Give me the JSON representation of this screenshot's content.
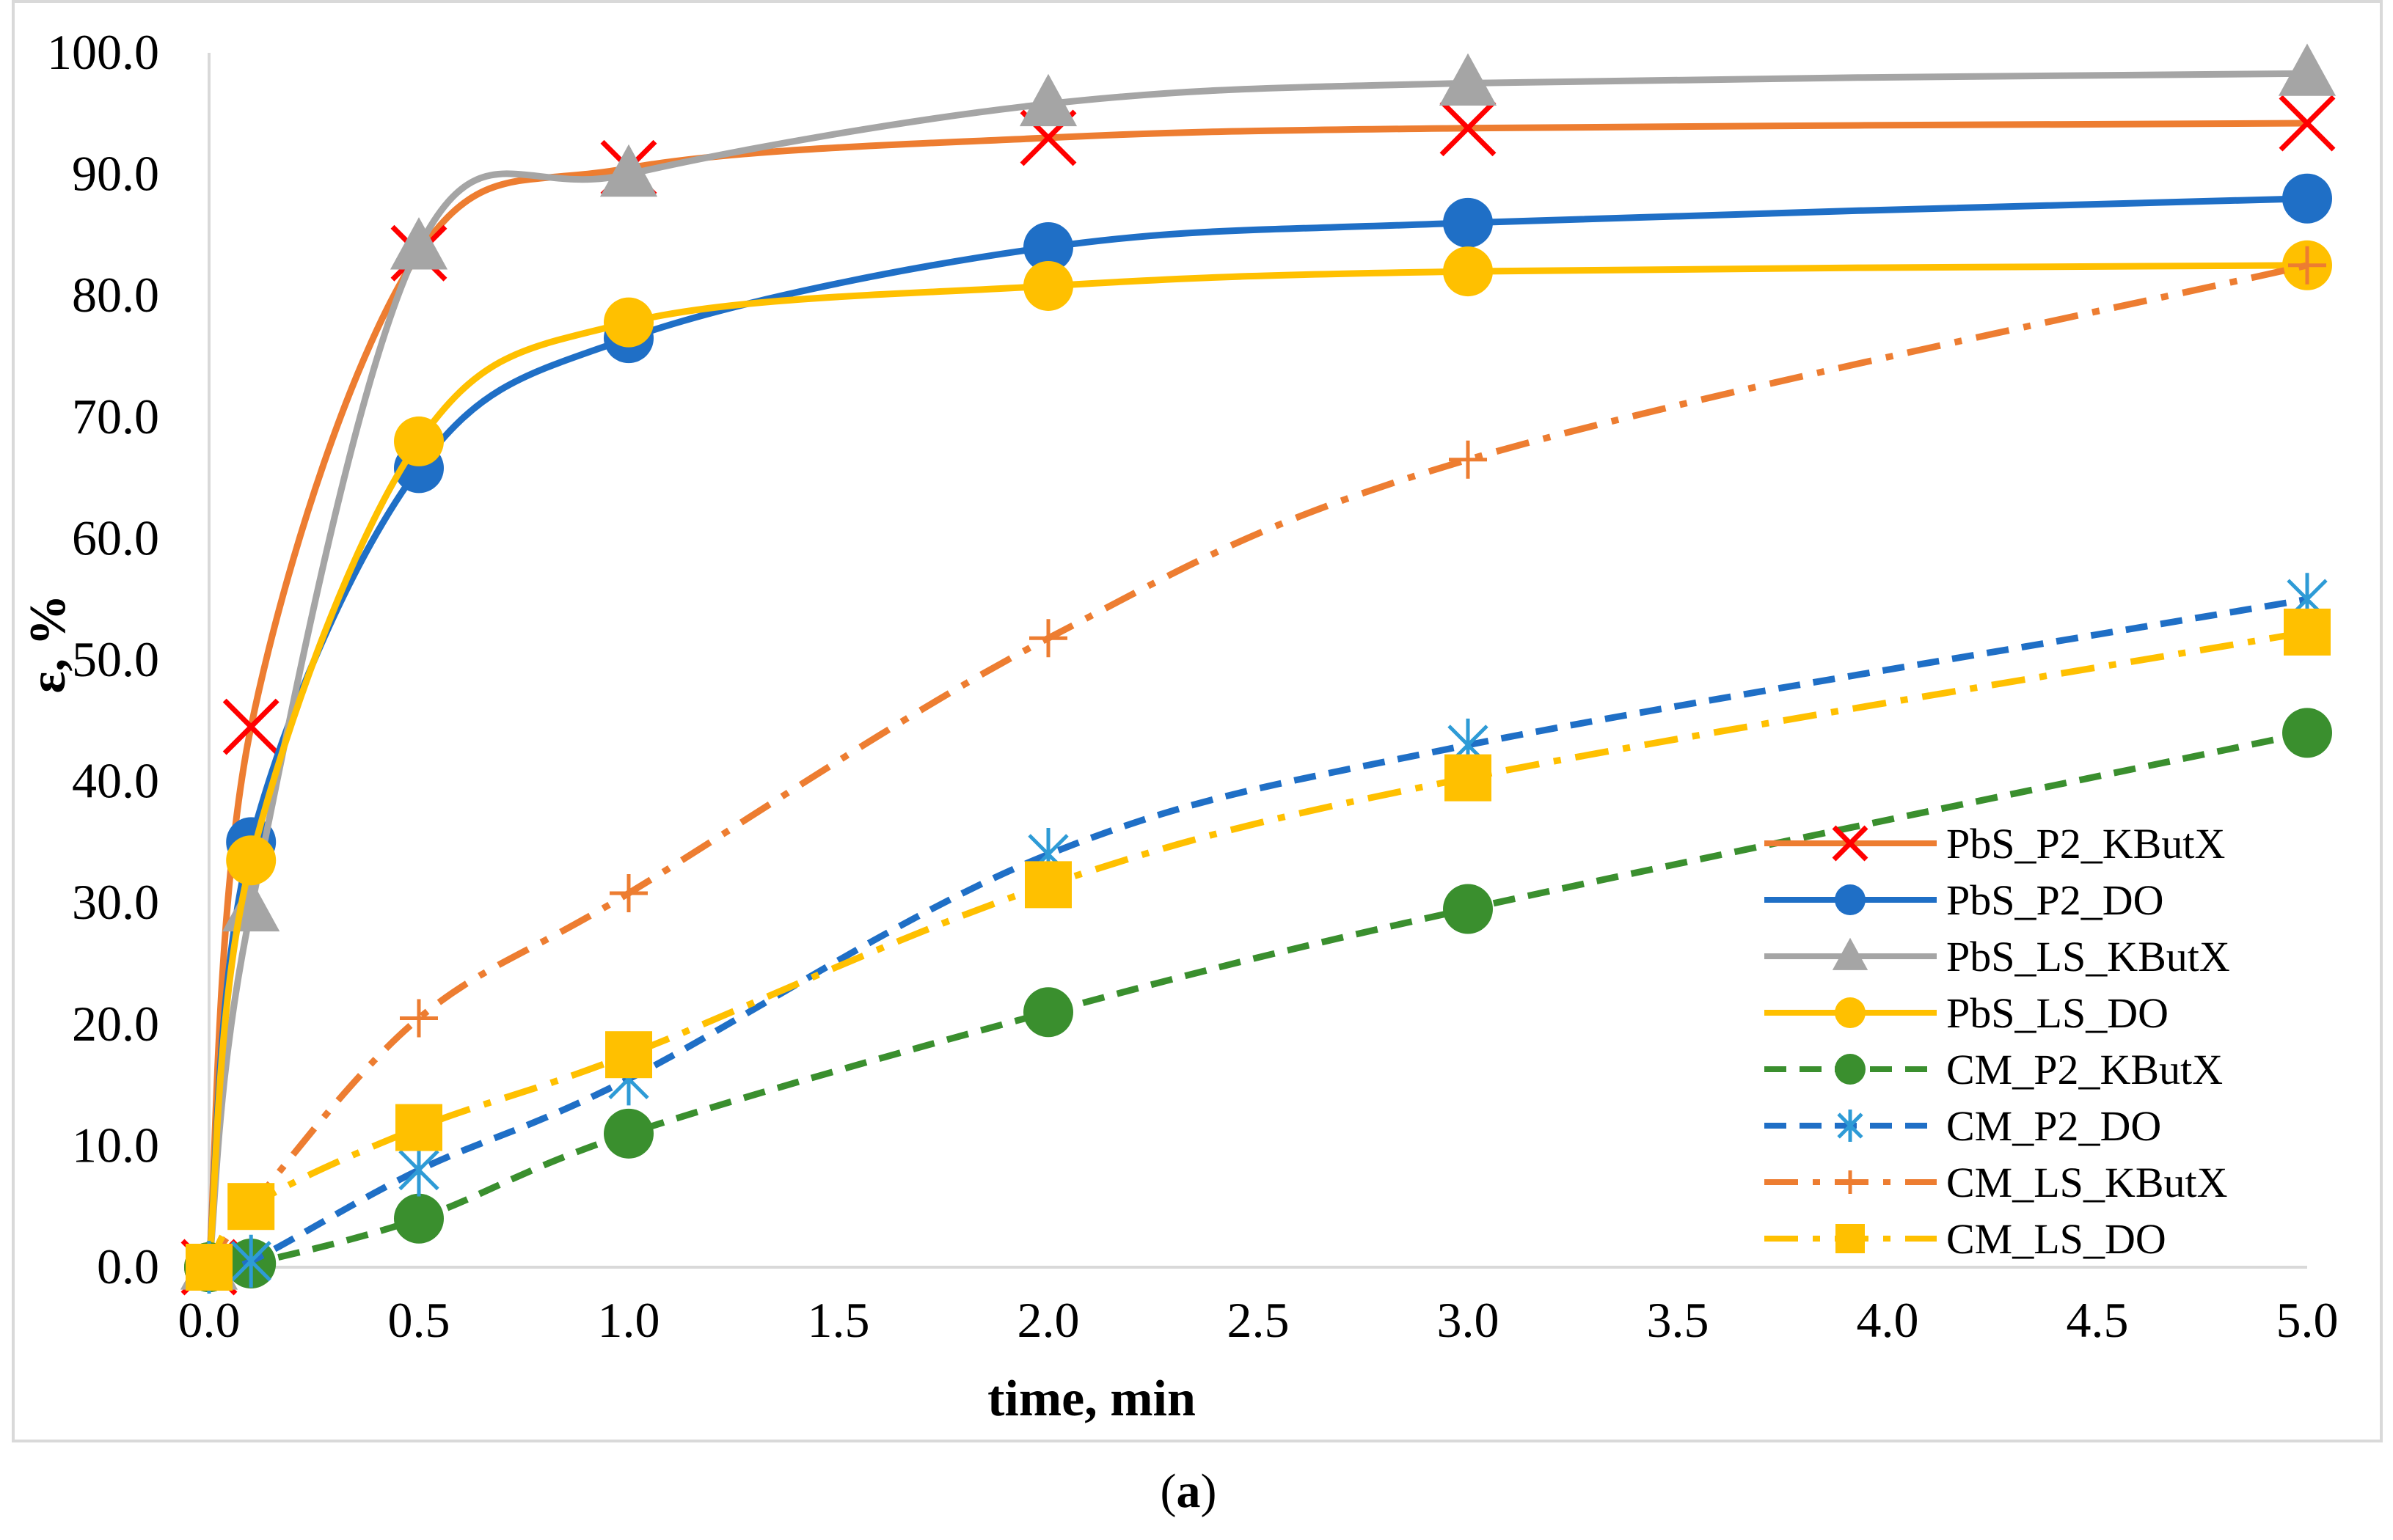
{
  "chart_data": {
    "type": "line",
    "title": "",
    "xlabel": "time, min",
    "ylabel": "ε, %",
    "caption_letter": "a",
    "xlim": [
      0,
      5
    ],
    "ylim": [
      0,
      100
    ],
    "grid": false,
    "legend_position": "bottom-right",
    "x_ticks": [
      "0.0",
      "0.5",
      "1.0",
      "1.5",
      "2.0",
      "2.5",
      "3.0",
      "3.5",
      "4.0",
      "4.5",
      "5.0"
    ],
    "y_ticks": [
      "0.0",
      "10.0",
      "20.0",
      "30.0",
      "40.0",
      "50.0",
      "60.0",
      "70.0",
      "80.0",
      "90.0",
      "100.0"
    ],
    "x": [
      0,
      0.1,
      0.5,
      1,
      2,
      3,
      5
    ],
    "series": [
      {
        "name": "PbS_P2_KButX",
        "values": [
          0,
          44.5,
          83.5,
          90.5,
          93.0,
          93.8,
          94.2
        ],
        "color": "#ED7D31",
        "marker": "x",
        "marker_color": "#FF0000",
        "dash": "solid",
        "smooth": true
      },
      {
        "name": "PbS_P2_DO",
        "values": [
          0,
          35.0,
          65.8,
          76.5,
          84.0,
          86.0,
          88.0
        ],
        "color": "#1F6FC6",
        "marker": "circle",
        "marker_color": "#1F6FC6",
        "dash": "solid",
        "smooth": true
      },
      {
        "name": "PbS_LS_KButX",
        "values": [
          0,
          29.5,
          84.0,
          90.0,
          95.8,
          97.5,
          98.3
        ],
        "color": "#A5A5A5",
        "marker": "triangle",
        "marker_color": "#A5A5A5",
        "dash": "solid",
        "smooth": true
      },
      {
        "name": "PbS_LS_DO",
        "values": [
          0,
          33.5,
          68.0,
          77.8,
          80.8,
          82.0,
          82.5
        ],
        "color": "#FFC000",
        "marker": "circle",
        "marker_color": "#FFC000",
        "dash": "solid",
        "smooth": true
      },
      {
        "name": "CM_P2_KButX",
        "values": [
          0,
          0.3,
          4.0,
          11.0,
          21.0,
          29.5,
          44.0
        ],
        "color": "#3A8F2E",
        "marker": "circle",
        "marker_color": "#3A8F2E",
        "dash": "dash",
        "smooth": true
      },
      {
        "name": "CM_P2_DO",
        "values": [
          0,
          0.5,
          8.0,
          15.5,
          34.0,
          43.0,
          55.0
        ],
        "color": "#1F6FC6",
        "marker": "asterisk",
        "marker_color": "#2E9BD6",
        "dash": "dash",
        "smooth": true
      },
      {
        "name": "CM_LS_KButX",
        "values": [
          0,
          5.0,
          20.5,
          30.8,
          51.8,
          66.5,
          82.5
        ],
        "color": "#ED7D31",
        "marker": "plus",
        "marker_color": "#ED7D31",
        "dash": "dashdot",
        "smooth": true
      },
      {
        "name": "CM_LS_DO",
        "values": [
          0,
          5.0,
          11.5,
          17.5,
          31.5,
          40.3,
          52.3
        ],
        "color": "#FFC000",
        "marker": "square",
        "marker_color": "#FFC000",
        "dash": "dashdot",
        "smooth": true
      }
    ]
  }
}
